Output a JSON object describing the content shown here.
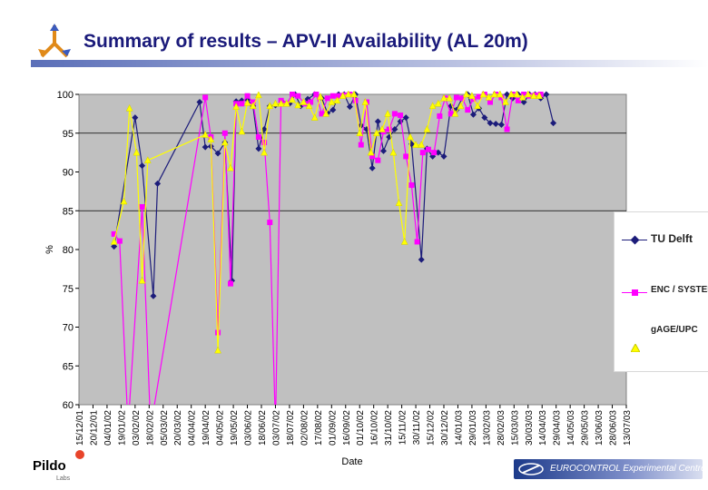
{
  "header": {
    "title": "Summary of results – APV-II Availability (AL 20m)"
  },
  "footer": {
    "company_name": "Pildo",
    "company_sub": "Labs",
    "org": "EUROCONTROL Experimental Centre"
  },
  "legend": {
    "items": [
      {
        "label": "TU Delft",
        "color": "#1c1c7a",
        "marker": "diamond"
      },
      {
        "label": "ENC / SYSTEMS",
        "color": "#ff00ff",
        "marker": "square"
      },
      {
        "label": "gAGE/UPC",
        "color": "#ffff00",
        "marker": "triangle"
      }
    ]
  },
  "chart_data": {
    "type": "line",
    "title": "",
    "xlabel": "Date",
    "ylabel": "%",
    "ylim": [
      60,
      100
    ],
    "yticks": [
      60,
      65,
      70,
      75,
      80,
      85,
      90,
      95,
      100
    ],
    "plot_bg": "#c0c0c0",
    "grid": "horizontal at 85 and 95",
    "x_tick_labels": [
      "15/12/01",
      "20/12/01",
      "04/01/02",
      "19/01/02",
      "03/02/02",
      "18/02/02",
      "05/03/02",
      "20/03/02",
      "04/04/02",
      "19/04/02",
      "04/05/02",
      "19/05/02",
      "03/06/02",
      "18/06/02",
      "03/07/02",
      "18/07/02",
      "02/08/02",
      "17/08/02",
      "01/09/02",
      "16/09/02",
      "01/10/02",
      "16/10/02",
      "31/10/02",
      "15/11/02",
      "30/11/02",
      "15/12/02",
      "30/12/02",
      "14/01/03",
      "29/01/03",
      "13/02/03",
      "28/02/03",
      "15/03/03",
      "30/03/03",
      "14/04/03",
      "29/04/03",
      "14/05/03",
      "29/05/03",
      "13/06/03",
      "28/06/03",
      "13/07/03"
    ],
    "x_range": [
      0,
      39
    ],
    "series": [
      {
        "name": "TU Delft",
        "color": "#1c1c7a",
        "marker": "diamond",
        "points": [
          [
            2.5,
            80.4
          ],
          [
            4.0,
            97.0
          ],
          [
            4.5,
            90.8
          ],
          [
            5.3,
            74.0
          ],
          [
            5.6,
            88.5
          ],
          [
            8.6,
            99.0
          ],
          [
            9.0,
            93.2
          ],
          [
            9.4,
            93.3
          ],
          [
            9.9,
            92.4
          ],
          [
            10.4,
            93.8
          ],
          [
            10.9,
            76.0
          ],
          [
            11.2,
            99.1
          ],
          [
            11.6,
            99.2
          ],
          [
            12.0,
            99.3
          ],
          [
            12.4,
            98.5
          ],
          [
            12.8,
            93.0
          ],
          [
            13.2,
            95.5
          ],
          [
            13.6,
            98.5
          ],
          [
            14.0,
            98.6
          ],
          [
            14.5,
            99.0
          ],
          [
            15.0,
            98.8
          ],
          [
            15.4,
            100.0
          ],
          [
            15.8,
            98.5
          ],
          [
            16.3,
            99.4
          ],
          [
            16.8,
            100.0
          ],
          [
            17.3,
            99.5
          ],
          [
            17.7,
            97.6
          ],
          [
            18.1,
            98.0
          ],
          [
            18.5,
            100.0
          ],
          [
            18.9,
            100.0
          ],
          [
            19.3,
            98.4
          ],
          [
            19.7,
            100.0
          ],
          [
            20.1,
            96.0
          ],
          [
            20.5,
            95.5
          ],
          [
            20.9,
            90.5
          ],
          [
            21.3,
            96.5
          ],
          [
            21.7,
            92.7
          ],
          [
            22.1,
            94.5
          ],
          [
            22.5,
            95.5
          ],
          [
            22.9,
            96.5
          ],
          [
            23.3,
            97.0
          ],
          [
            23.7,
            93.6
          ],
          [
            24.4,
            78.7
          ],
          [
            24.8,
            93.0
          ],
          [
            25.2,
            92.0
          ],
          [
            25.6,
            92.5
          ],
          [
            26.0,
            92.0
          ],
          [
            26.5,
            98.5
          ],
          [
            26.9,
            98.0
          ],
          [
            27.3,
            99.5
          ],
          [
            27.7,
            100.0
          ],
          [
            28.1,
            97.4
          ],
          [
            28.5,
            98.2
          ],
          [
            28.9,
            97.0
          ],
          [
            29.3,
            96.3
          ],
          [
            29.7,
            96.2
          ],
          [
            30.1,
            96.1
          ],
          [
            30.5,
            100.0
          ],
          [
            30.9,
            99.5
          ],
          [
            31.3,
            100.0
          ],
          [
            31.7,
            99.0
          ],
          [
            32.1,
            100.0
          ],
          [
            32.5,
            100.0
          ],
          [
            32.9,
            99.5
          ],
          [
            33.3,
            100.0
          ],
          [
            33.8,
            96.3
          ]
        ]
      },
      {
        "name": "ENC / SYSTEMS",
        "color": "#ff00ff",
        "marker": "square",
        "points": [
          [
            2.5,
            82.0
          ],
          [
            2.9,
            81.1
          ],
          [
            3.5,
            57.0
          ],
          [
            4.5,
            85.5
          ],
          [
            5.1,
            57.0
          ],
          [
            9.0,
            99.6
          ],
          [
            9.4,
            94.5
          ],
          [
            9.9,
            69.3
          ],
          [
            10.4,
            95.0
          ],
          [
            10.8,
            75.6
          ],
          [
            11.2,
            98.8
          ],
          [
            11.6,
            98.8
          ],
          [
            12.0,
            99.8
          ],
          [
            12.4,
            99.0
          ],
          [
            12.8,
            94.5
          ],
          [
            13.2,
            93.8
          ],
          [
            13.6,
            83.5
          ],
          [
            14.0,
            57.0
          ],
          [
            14.4,
            99.2
          ],
          [
            14.8,
            98.8
          ],
          [
            15.2,
            100.0
          ],
          [
            15.6,
            99.8
          ],
          [
            16.1,
            98.8
          ],
          [
            16.5,
            99.0
          ],
          [
            16.9,
            100.0
          ],
          [
            17.3,
            97.5
          ],
          [
            17.7,
            99.5
          ],
          [
            18.1,
            99.8
          ],
          [
            18.5,
            99.8
          ],
          [
            18.9,
            99.9
          ],
          [
            19.3,
            100.0
          ],
          [
            19.7,
            99.2
          ],
          [
            20.1,
            93.5
          ],
          [
            20.5,
            99.0
          ],
          [
            20.9,
            92.0
          ],
          [
            21.3,
            91.5
          ],
          [
            21.7,
            95.2
          ],
          [
            22.1,
            95.5
          ],
          [
            22.5,
            97.5
          ],
          [
            22.9,
            97.3
          ],
          [
            23.3,
            92.0
          ],
          [
            23.7,
            88.3
          ],
          [
            24.1,
            81.0
          ],
          [
            24.5,
            92.5
          ],
          [
            24.9,
            92.9
          ],
          [
            25.3,
            92.5
          ],
          [
            25.7,
            97.2
          ],
          [
            26.1,
            99.5
          ],
          [
            26.5,
            97.5
          ],
          [
            26.9,
            99.6
          ],
          [
            27.3,
            99.5
          ],
          [
            27.7,
            98.0
          ],
          [
            28.1,
            99.4
          ],
          [
            28.5,
            99.7
          ],
          [
            28.9,
            100.0
          ],
          [
            29.3,
            99.0
          ],
          [
            29.7,
            100.0
          ],
          [
            30.1,
            99.6
          ],
          [
            30.5,
            95.5
          ],
          [
            30.9,
            100.0
          ],
          [
            31.3,
            99.2
          ],
          [
            31.7,
            100.0
          ],
          [
            32.1,
            99.8
          ],
          [
            32.5,
            99.9
          ],
          [
            32.9,
            100.0
          ]
        ]
      },
      {
        "name": "gAGE/UPC",
        "color": "#ffff00",
        "marker": "triangle",
        "points": [
          [
            2.5,
            81.0
          ],
          [
            3.2,
            86.2
          ],
          [
            3.6,
            98.2
          ],
          [
            4.1,
            92.5
          ],
          [
            4.5,
            76.0
          ],
          [
            4.9,
            91.5
          ],
          [
            9.0,
            94.8
          ],
          [
            9.4,
            94.2
          ],
          [
            9.9,
            67.0
          ],
          [
            10.4,
            93.8
          ],
          [
            10.8,
            90.5
          ],
          [
            11.2,
            98.4
          ],
          [
            11.6,
            95.2
          ],
          [
            12.0,
            98.9
          ],
          [
            12.4,
            98.5
          ],
          [
            12.8,
            99.9
          ],
          [
            13.2,
            92.5
          ],
          [
            13.6,
            98.5
          ],
          [
            14.0,
            98.8
          ],
          [
            14.4,
            98.8
          ],
          [
            14.8,
            98.8
          ],
          [
            15.2,
            99.3
          ],
          [
            15.6,
            98.6
          ],
          [
            16.0,
            99.0
          ],
          [
            16.4,
            98.5
          ],
          [
            16.8,
            97.0
          ],
          [
            17.2,
            99.7
          ],
          [
            17.6,
            97.5
          ],
          [
            18.0,
            99.0
          ],
          [
            18.4,
            99.2
          ],
          [
            18.8,
            99.8
          ],
          [
            19.2,
            100.0
          ],
          [
            19.6,
            100.0
          ],
          [
            20.0,
            95.0
          ],
          [
            20.4,
            99.0
          ],
          [
            20.8,
            92.5
          ],
          [
            21.2,
            95.0
          ],
          [
            21.6,
            95.5
          ],
          [
            22.0,
            97.5
          ],
          [
            22.4,
            92.5
          ],
          [
            22.8,
            86.0
          ],
          [
            23.2,
            81.0
          ],
          [
            23.6,
            94.5
          ],
          [
            24.0,
            93.5
          ],
          [
            24.4,
            93.5
          ],
          [
            24.8,
            95.5
          ],
          [
            25.2,
            98.5
          ],
          [
            25.6,
            98.8
          ],
          [
            26.0,
            99.5
          ],
          [
            26.4,
            99.5
          ],
          [
            26.8,
            97.5
          ],
          [
            27.2,
            98.5
          ],
          [
            27.6,
            100.0
          ],
          [
            28.0,
            99.8
          ],
          [
            28.4,
            98.5
          ],
          [
            28.8,
            100.0
          ],
          [
            29.2,
            99.6
          ],
          [
            29.6,
            100.0
          ],
          [
            30.0,
            100.0
          ],
          [
            30.4,
            99.0
          ],
          [
            30.8,
            100.0
          ],
          [
            31.2,
            100.0
          ],
          [
            31.6,
            99.6
          ],
          [
            32.0,
            100.0
          ],
          [
            32.4,
            99.8
          ],
          [
            32.8,
            99.8
          ]
        ]
      }
    ]
  }
}
